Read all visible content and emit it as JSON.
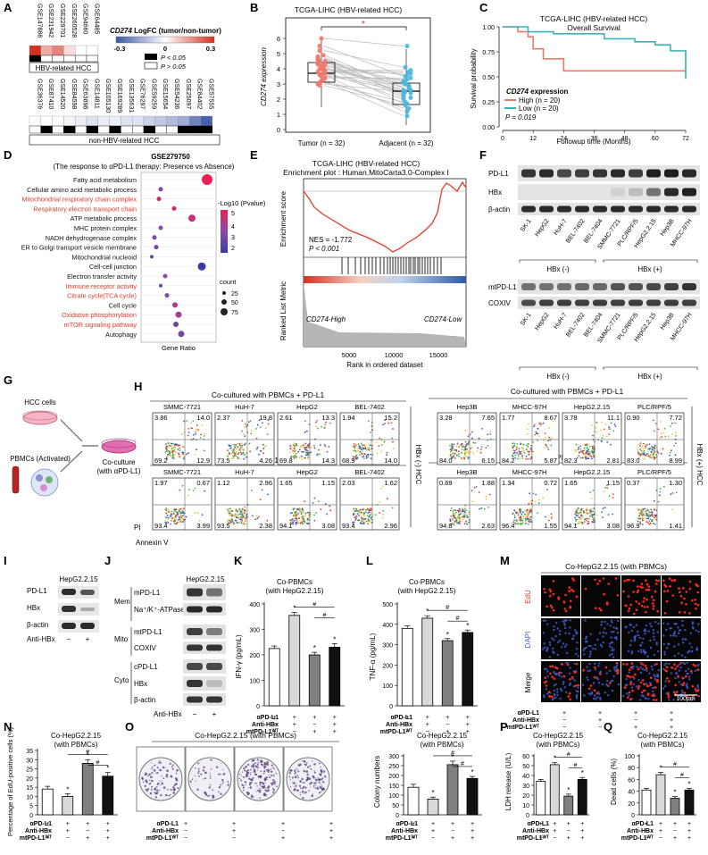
{
  "panels": {
    "A": {
      "letter": "A",
      "hbv_datasets": [
        "GSE147888",
        "GSE231942",
        "GSE229701",
        "GSE260528",
        "GSE94660",
        "GSE64485"
      ],
      "hbv_group_label": "HBV-related HCC",
      "nonhbv_datasets": [
        "GSE36376",
        "GSE87410",
        "GSE14520",
        "GSE84598",
        "GSE63898",
        "GSE14811",
        "GSE105130",
        "GSE169289",
        "GSE135631",
        "GSE76297",
        "GSE59259",
        "GSE15654",
        "GSE54236",
        "GSE25097",
        "GSE84402",
        "GSE57555"
      ],
      "nonhbv_group_label": "non-HBV-related HCC",
      "legend_title_gene": "CD274",
      "legend_title_rest": " LogFC (tumor/non-tumor)",
      "scale_ticks": [
        "-0.3",
        "0",
        "0.3"
      ],
      "p_sig_label": "P < 0.05",
      "p_nonsig_label": "P > 0.05",
      "hbv_logfc": [
        0.3,
        0.12,
        0.18,
        0.05,
        0.0,
        0.0
      ],
      "hbv_sig": [
        true,
        false,
        false,
        false,
        false,
        false
      ],
      "nonhbv_logfc": [
        0.0,
        0.0,
        0.0,
        -0.02,
        -0.03,
        -0.05,
        -0.03,
        -0.03,
        -0.05,
        -0.05,
        -0.08,
        -0.1,
        -0.12,
        -0.15,
        -0.22,
        -0.28
      ],
      "nonhbv_sig": [
        false,
        true,
        false,
        true,
        false,
        true,
        false,
        true,
        false,
        false,
        true,
        false,
        false,
        true,
        true,
        true
      ],
      "colors": {
        "pos": "#d7301f",
        "neg": "#3a56a8"
      }
    },
    "B": {
      "letter": "B",
      "title": "TCGA-LIHC (HBV-related HCC)",
      "ylabel": "CD274 expression",
      "yticks": [
        "0",
        "1",
        "2",
        "3",
        "4",
        "5",
        "6"
      ],
      "xlabels": [
        "Tumor (n = 32)",
        "Adjacent (n = 32)"
      ],
      "sig": "*"
    },
    "C": {
      "letter": "C",
      "title_line1": "TCGA-LIHC (HBV-related HCC)",
      "title_line2": "Overall Survival",
      "ylabel": "Survival probability",
      "xlabel": "Followup time (Months)",
      "yticks": [
        "0.00",
        "0.25",
        "0.50",
        "0.75",
        "1.00"
      ],
      "xticks": [
        "0",
        "12",
        "24",
        "36",
        "48",
        "60",
        "72"
      ],
      "legend_gene": "CD274",
      "legend_rest": " expression",
      "high_label": "High (n = 20)",
      "low_label": "Low (n = 20)",
      "pvalue": "P = 0.019",
      "colors": {
        "high": "#f0776c",
        "low": "#3ab3b8"
      }
    },
    "D": {
      "letter": "D",
      "title_line1": "GSE279750",
      "title_line2": "(The response to αPD-L1 therapy: Presence vs Absence)",
      "xlabel": "Gene Ratio",
      "terms": [
        {
          "name": "Fatty acid metabolism",
          "red": false
        },
        {
          "name": "Cellular amino acid metabolic process",
          "red": false
        },
        {
          "name": "Mitochondrial respiratory chain complex",
          "red": true
        },
        {
          "name": "Respiratory electron transport chain",
          "red": true
        },
        {
          "name": "ATP metabolic process",
          "red": false
        },
        {
          "name": "MHC protein complex",
          "red": false
        },
        {
          "name": "NADH dehydrogenase complex",
          "red": false
        },
        {
          "name": "ER to Golgi transport vesicle membrane",
          "red": false
        },
        {
          "name": "Mitochondrial nucleoid",
          "red": false
        },
        {
          "name": "Cell-cell junction",
          "red": false
        },
        {
          "name": "Electron transfer activity",
          "red": false
        },
        {
          "name": "Immune receptor activity",
          "red": true
        },
        {
          "name": "Citrate cycle(TCA cycle)",
          "red": true
        },
        {
          "name": "Cell cycle",
          "red": false
        },
        {
          "name": "Oxidative phosphorylation",
          "red": true
        },
        {
          "name": "mTOR signaling pathway",
          "red": true
        },
        {
          "name": "Autophagy",
          "red": false
        }
      ],
      "legend_color_title": "-Log10 (Pvalue)",
      "color_ticks": [
        "5",
        "4",
        "3",
        "2"
      ],
      "legend_size_title": "count",
      "size_ticks": [
        "25",
        "50",
        "75"
      ]
    },
    "E": {
      "letter": "E",
      "title_line1": "TCGA-LIHC (HBV-related HCC)",
      "title_line2": "Enrichment plot : Human.MitoCarta3.0-Complex I",
      "ylabel_top": "Enrichment score",
      "ylabel_bottom": "Ranked List Metric",
      "nes": "NES = -1.772",
      "pvalue": "P < 0.001",
      "high_label": "CD274-High",
      "low_label": "CD274-Low",
      "xticks": [
        "5000",
        "10000",
        "15000"
      ],
      "xlabel": "Rank in ordered dataset"
    },
    "F": {
      "letter": "F",
      "top_rows": [
        "PD-L1",
        "HBx",
        "β-actin"
      ],
      "bottom_rows": [
        "mtPD-L1",
        "COXIV"
      ],
      "lanes": [
        "SK-1",
        "HepG2",
        "HuH-7",
        "BEL-7402",
        "BEL-7404",
        "SMMC-7721",
        "PLC/RPF/5",
        "HepG2.2.15",
        "Hep3B",
        "MHCC-97H"
      ],
      "group_neg": "HBx (-)",
      "group_pos": "HBx (+)"
    },
    "G": {
      "letter": "G",
      "hcc_label": "HCC cells",
      "pbmc_label": "PBMCs (Activated)",
      "coculture_line1": "Co-culture",
      "coculture_line2": "(with αPD-L1)"
    },
    "H": {
      "letter": "H",
      "left_title": "Co-cultured with PBMCs + PD-L1",
      "right_title": "Co-cultured with PBMCs + PD-L1",
      "mid_title_left": "PD-L1",
      "mid_title_right": "PD-L1",
      "side_neg": "HBx (-) HCC",
      "side_pos": "HBx (+) HCC",
      "xlabel": "Annexin V",
      "ylabel": "PI",
      "rows": [
        [
          {
            "name": "SMMC-7721",
            "ul": "3.86",
            "ur": "14.0",
            "ll": "69.2",
            "lr": "12.9"
          },
          {
            "name": "HuH-7",
            "ul": "2.37",
            "ur": "19.8",
            "ll": "73.5",
            "lr": "4.26"
          },
          {
            "name": "HepG2",
            "ul": "2.61",
            "ur": "13.3",
            "ll": "69.8",
            "lr": "14.3"
          },
          {
            "name": "BEL-7402",
            "ul": "1.94",
            "ur": "15.2",
            "ll": "68.9",
            "lr": "14.0"
          },
          {
            "name": "Hep3B",
            "ul": "3.28",
            "ur": "7.65",
            "ll": "84.0",
            "lr": "6.15"
          },
          {
            "name": "MHCC-97H",
            "ul": "1.77",
            "ur": "8.67",
            "ll": "84.2",
            "lr": "5.87"
          },
          {
            "name": "HepG2.2.15",
            "ul": "3.78",
            "ur": "11.1",
            "ll": "82.3",
            "lr": "2.81"
          },
          {
            "name": "PLC/RPF/5",
            "ul": "0.90",
            "ur": "7.72",
            "ll": "83.0",
            "lr": "8.99"
          }
        ],
        [
          {
            "name": "SMMC-7721",
            "ul": "1.97",
            "ur": "0.67",
            "ll": "93.4",
            "lr": "3.99"
          },
          {
            "name": "HuH-7",
            "ul": "1.12",
            "ur": "2.96",
            "ll": "93.5",
            "lr": "2.38"
          },
          {
            "name": "HepG2",
            "ul": "1.65",
            "ur": "1.15",
            "ll": "94.1",
            "lr": "3.08"
          },
          {
            "name": "BEL-7402",
            "ul": "2.03",
            "ur": "1.62",
            "ll": "93.4",
            "lr": "2.96"
          },
          {
            "name": "Hep3B",
            "ul": "0.69",
            "ur": "1.88",
            "ll": "94.8",
            "lr": "2.63"
          },
          {
            "name": "MHCC-97H",
            "ul": "1.34",
            "ur": "0.72",
            "ll": "96.4",
            "lr": "1.55"
          },
          {
            "name": "HepG2.2.15",
            "ul": "1.65",
            "ur": "1.15",
            "ll": "94.1",
            "lr": "3.08"
          },
          {
            "name": "PLC/RPF/5",
            "ul": "0.37",
            "ur": "1.30",
            "ll": "96.9",
            "lr": "1.41"
          }
        ]
      ]
    },
    "I": {
      "letter": "I",
      "title": "HepG2.2.15",
      "rows": [
        "PD-L1",
        "HBx",
        "β-actin"
      ],
      "treat_label": "Anti-HBx",
      "treat_signs": [
        "−",
        "+"
      ]
    },
    "J": {
      "letter": "J",
      "title": "HepG2.2.15",
      "groups": [
        "Mem",
        "Mito",
        "Cyto"
      ],
      "rows": [
        "mPD-L1",
        "Na⁺/K⁺-ATPase",
        "mtPD-L1",
        "COXIV",
        "cPD-L1",
        "HBx",
        "β-actin"
      ],
      "treat_label": "Anti-HBx",
      "treat_signs": [
        "−",
        "+"
      ]
    },
    "K": {
      "letter": "K",
      "title_line1": "Co-PBMCs",
      "title_line2": "(with HepG2.2.15)",
      "ylabel": "IFN-γ (pg/mL)",
      "yticks": [
        "0",
        "100",
        "200",
        "300",
        "400"
      ],
      "ymax": 400,
      "values": [
        225,
        355,
        200,
        230
      ],
      "errors": [
        10,
        12,
        10,
        14
      ]
    },
    "L": {
      "letter": "L",
      "title_line1": "Co-PBMCs",
      "title_line2": "(with HepG2.2.15)",
      "ylabel": "TNF-α (pg/mL)",
      "yticks": [
        "0",
        "100",
        "200",
        "300",
        "400",
        "500"
      ],
      "ymax": 500,
      "values": [
        380,
        430,
        320,
        360
      ],
      "errors": [
        12,
        12,
        10,
        12
      ]
    },
    "M": {
      "letter": "M",
      "title": "Co-HepG2.2.15 (with PBMCs)",
      "rows": [
        "EdU",
        "DAPI",
        "Merge"
      ],
      "scale": "100μm"
    },
    "N": {
      "letter": "N",
      "title_line1": "Co-HepG2.2.15",
      "title_line2": "(with PBMCs)",
      "ylabel": "Percentage of EdU-positive cells (%)",
      "yticks": [
        "0",
        "5",
        "10",
        "15",
        "20",
        "25",
        "30",
        "35"
      ],
      "ymax": 35,
      "values": [
        14,
        10,
        28,
        21
      ],
      "errors": [
        1.5,
        1.5,
        2,
        2
      ]
    },
    "O": {
      "letter": "O",
      "plates_title": "Co-HepG2.2.15 (with PBMCs)",
      "title_line1": "Co-HepG2.2.15",
      "title_line2": "(with PBMCs)",
      "ylabel": "Colony numbers",
      "yticks": [
        "0",
        "50",
        "100",
        "150",
        "200",
        "250",
        "300"
      ],
      "ymax": 300,
      "values": [
        140,
        80,
        255,
        185
      ],
      "errors": [
        15,
        10,
        18,
        10
      ]
    },
    "P": {
      "letter": "P",
      "title_line1": "Co-HepG2.2.15",
      "title_line2": "(with PBMCs)",
      "ylabel": "LDH release (U/L)",
      "yticks": [
        "0",
        "10",
        "20",
        "30",
        "40",
        "50",
        "60"
      ],
      "ymax": 60,
      "values": [
        34,
        51,
        19,
        36
      ],
      "errors": [
        2,
        2,
        2,
        2
      ]
    },
    "Q": {
      "letter": "Q",
      "title_line1": "Co-HepG2.2.15",
      "title_line2": "(with PBMCs)",
      "ylabel": "Dead cells (%)",
      "yticks": [
        "0",
        "20",
        "40",
        "60",
        "80",
        "100"
      ],
      "ymax": 100,
      "values": [
        42,
        68,
        28,
        42
      ],
      "errors": [
        3,
        4,
        3,
        3
      ]
    }
  },
  "treatment": {
    "labels": [
      "αPD-L1",
      "Anti-HBx",
      "mtPD-L1ᵂᵀ"
    ],
    "signs": [
      [
        "+",
        "−",
        "−"
      ],
      [
        "+",
        "+",
        "−"
      ],
      [
        "+",
        "−",
        "+"
      ],
      [
        "+",
        "+",
        "+"
      ]
    ]
  },
  "chart_data": [
    {
      "type": "bar",
      "panel": "K",
      "categories": [
        "1",
        "2",
        "3",
        "4"
      ],
      "values": [
        225,
        355,
        200,
        230
      ],
      "ylabel": "IFN-γ (pg/mL)",
      "ylim": [
        0,
        400
      ]
    },
    {
      "type": "bar",
      "panel": "L",
      "categories": [
        "1",
        "2",
        "3",
        "4"
      ],
      "values": [
        380,
        430,
        320,
        360
      ],
      "ylabel": "TNF-α (pg/mL)",
      "ylim": [
        0,
        500
      ]
    },
    {
      "type": "bar",
      "panel": "N",
      "categories": [
        "1",
        "2",
        "3",
        "4"
      ],
      "values": [
        14,
        10,
        28,
        21
      ],
      "ylabel": "Percentage of EdU-positive cells (%)",
      "ylim": [
        0,
        35
      ]
    },
    {
      "type": "bar",
      "panel": "O",
      "categories": [
        "1",
        "2",
        "3",
        "4"
      ],
      "values": [
        140,
        80,
        255,
        185
      ],
      "ylabel": "Colony numbers",
      "ylim": [
        0,
        300
      ]
    },
    {
      "type": "bar",
      "panel": "P",
      "categories": [
        "1",
        "2",
        "3",
        "4"
      ],
      "values": [
        34,
        51,
        19,
        36
      ],
      "ylabel": "LDH release (U/L)",
      "ylim": [
        0,
        60
      ]
    },
    {
      "type": "bar",
      "panel": "Q",
      "categories": [
        "1",
        "2",
        "3",
        "4"
      ],
      "values": [
        42,
        68,
        28,
        42
      ],
      "ylabel": "Dead cells (%)",
      "ylim": [
        0,
        100
      ]
    },
    {
      "type": "line",
      "panel": "C",
      "title": "TCGA-LIHC (HBV-related HCC) Overall Survival",
      "xlabel": "Followup time (Months)",
      "ylabel": "Survival probability",
      "series": [
        {
          "name": "High (n = 20)",
          "x": [
            0,
            6,
            10,
            12,
            16,
            24,
            72
          ],
          "y": [
            1.0,
            0.95,
            0.9,
            0.78,
            0.68,
            0.56,
            0.56
          ]
        },
        {
          "name": "Low (n = 20)",
          "x": [
            0,
            10,
            20,
            30,
            40,
            52,
            60,
            66,
            72
          ],
          "y": [
            1.0,
            0.95,
            0.93,
            0.93,
            0.88,
            0.85,
            0.82,
            0.76,
            0.48
          ]
        }
      ],
      "xlim": [
        0,
        72
      ],
      "ylim": [
        0,
        1
      ]
    }
  ]
}
